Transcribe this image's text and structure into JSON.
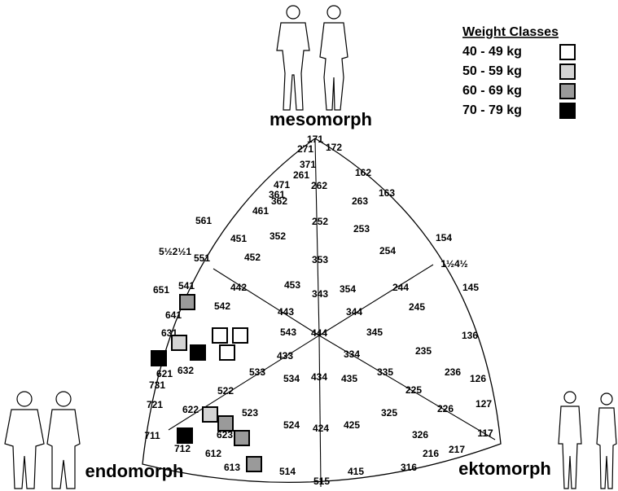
{
  "legend": {
    "title": "Weight Classes",
    "classes": [
      {
        "label": "40 - 49 kg",
        "color": "#ffffff"
      },
      {
        "label": "50 - 59 kg",
        "color": "#d4d4d4"
      },
      {
        "label": "60 - 69 kg",
        "color": "#9a9a9a"
      },
      {
        "label": "70 - 79 kg",
        "color": "#000000"
      }
    ]
  },
  "poles": {
    "top": "mesomorph",
    "left": "endomorph",
    "right": "ektomorph"
  },
  "somatotypes": [
    "171",
    "271",
    "172",
    "371",
    "261",
    "162",
    "471",
    "361",
    "262",
    "163",
    "263",
    "461",
    "362",
    "561",
    "252",
    "451",
    "352",
    "253",
    "154",
    "5½2½1",
    "551",
    "452",
    "353",
    "254",
    "1½4½",
    "442",
    "453",
    "354",
    "244",
    "145",
    "651",
    "541",
    "343",
    "542",
    "443",
    "344",
    "245",
    "641",
    "444",
    "543",
    "345",
    "136",
    "631",
    "433",
    "334",
    "235",
    "621",
    "632",
    "533",
    "534",
    "434",
    "435",
    "335",
    "236",
    "126",
    "731",
    "522",
    "225",
    "721",
    "523",
    "325",
    "226",
    "127",
    "622",
    "524",
    "424",
    "425",
    "623",
    "711",
    "326",
    "117",
    "712",
    "612",
    "216",
    "217",
    "613",
    "514",
    "415",
    "316",
    "515"
  ]
}
